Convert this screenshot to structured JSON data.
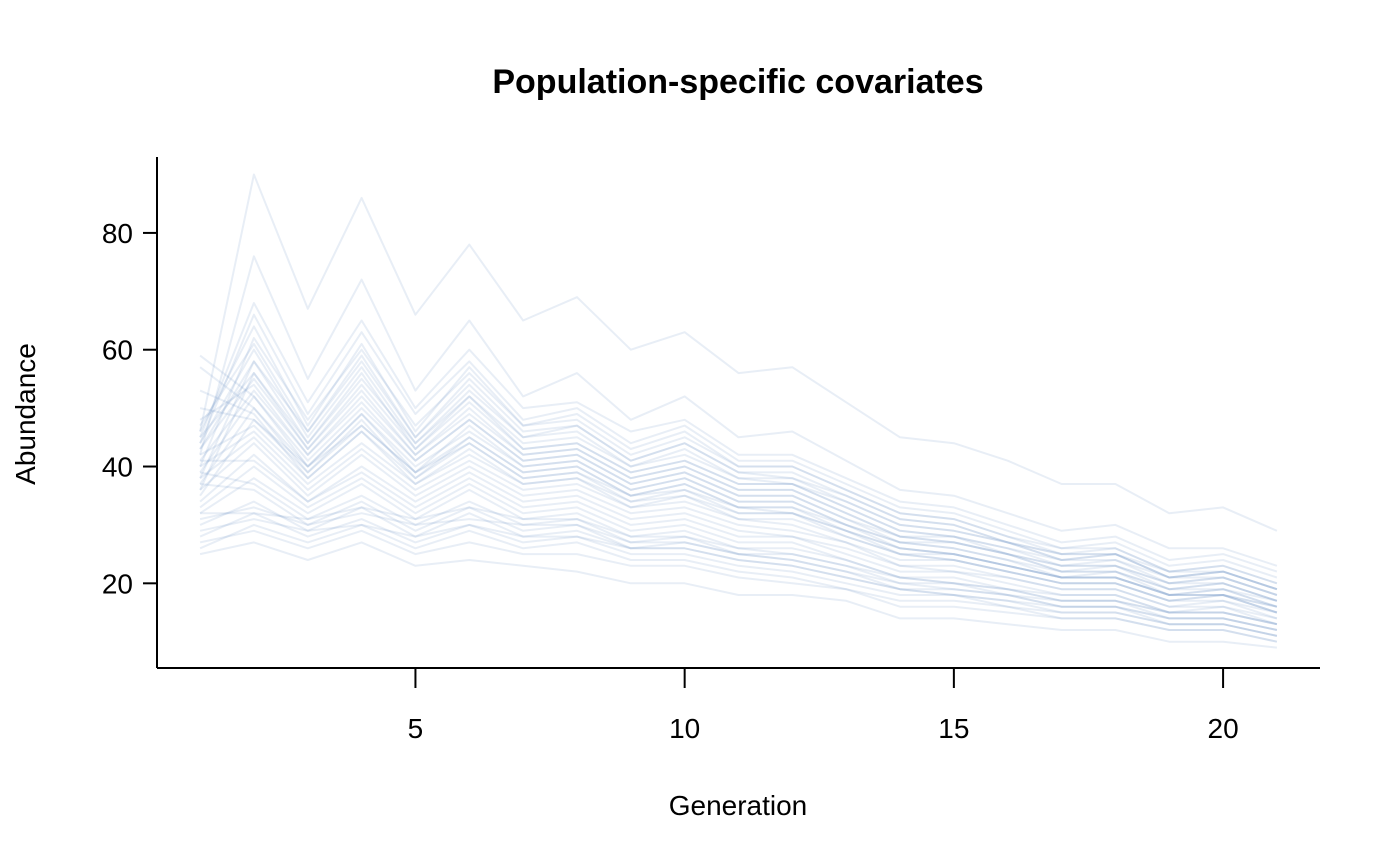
{
  "chart_data": {
    "type": "line",
    "title": "Population-specific covariates",
    "xlabel": "Generation",
    "ylabel": "Abundance",
    "xlim": [
      0.2,
      21.8
    ],
    "ylim": [
      5.5,
      93
    ],
    "x_ticks": [
      5,
      10,
      15,
      20
    ],
    "y_ticks": [
      20,
      40,
      60,
      80
    ],
    "grid": false,
    "legend": "none",
    "line_color": "#7093C9",
    "line_opacity": 0.16,
    "x": [
      1,
      2,
      3,
      4,
      5,
      6,
      7,
      8,
      9,
      10,
      11,
      12,
      13,
      14,
      15,
      16,
      17,
      18,
      19,
      20,
      21
    ],
    "series": [
      {
        "values": [
          46,
          90,
          67,
          86,
          66,
          78,
          65,
          69,
          60,
          63,
          56,
          57,
          51,
          45,
          44,
          41,
          37,
          37,
          32,
          33,
          29
        ]
      },
      {
        "values": [
          42,
          76,
          55,
          72,
          53,
          65,
          52,
          56,
          48,
          52,
          45,
          46,
          41,
          36,
          35,
          32,
          29,
          30,
          26,
          26,
          23
        ]
      },
      {
        "values": [
          45,
          68,
          51,
          65,
          50,
          60,
          50,
          51,
          46,
          48,
          42,
          42,
          38,
          34,
          33,
          30,
          27,
          28,
          24,
          25,
          22
        ]
      },
      {
        "values": [
          44,
          66,
          49,
          63,
          49,
          58,
          48,
          50,
          44,
          47,
          41,
          41,
          37,
          33,
          32,
          29,
          26,
          27,
          23,
          24,
          21
        ]
      },
      {
        "values": [
          40,
          62,
          48,
          60,
          47,
          56,
          47,
          48,
          42,
          45,
          40,
          40,
          36,
          32,
          31,
          28,
          26,
          26,
          22,
          23,
          20
        ]
      },
      {
        "values": [
          38,
          58,
          46,
          58,
          45,
          54,
          45,
          47,
          41,
          44,
          39,
          39,
          35,
          31,
          30,
          27,
          25,
          25,
          22,
          22,
          19
        ]
      },
      {
        "values": [
          36,
          56,
          44,
          55,
          44,
          52,
          44,
          45,
          40,
          42,
          38,
          38,
          34,
          30,
          29,
          27,
          24,
          25,
          21,
          22,
          19
        ]
      },
      {
        "values": [
          43,
          55,
          43,
          54,
          43,
          51,
          43,
          44,
          39,
          41,
          37,
          37,
          33,
          29,
          28,
          26,
          24,
          24,
          21,
          21,
          18
        ]
      },
      {
        "values": [
          41,
          53,
          42,
          52,
          42,
          49,
          42,
          43,
          38,
          40,
          36,
          36,
          32,
          28,
          28,
          25,
          23,
          23,
          20,
          21,
          18
        ]
      },
      {
        "values": [
          39,
          52,
          41,
          50,
          41,
          48,
          41,
          42,
          37,
          39,
          35,
          35,
          31,
          27,
          27,
          25,
          22,
          22,
          19,
          20,
          17
        ]
      },
      {
        "values": [
          37,
          50,
          40,
          49,
          40,
          46,
          40,
          41,
          36,
          38,
          34,
          34,
          30,
          27,
          26,
          24,
          22,
          22,
          19,
          19,
          17
        ]
      },
      {
        "values": [
          35,
          48,
          39,
          47,
          39,
          45,
          39,
          40,
          35,
          37,
          33,
          33,
          30,
          26,
          25,
          23,
          21,
          21,
          18,
          19,
          16
        ]
      },
      {
        "values": [
          42,
          47,
          38,
          46,
          38,
          44,
          38,
          39,
          34,
          36,
          32,
          32,
          29,
          25,
          25,
          23,
          21,
          21,
          18,
          18,
          16
        ]
      },
      {
        "values": [
          40,
          46,
          37,
          44,
          37,
          42,
          37,
          38,
          33,
          35,
          31,
          31,
          28,
          25,
          24,
          22,
          20,
          20,
          17,
          18,
          15
        ]
      },
      {
        "values": [
          38,
          45,
          36,
          43,
          36,
          41,
          36,
          37,
          33,
          34,
          31,
          30,
          27,
          24,
          24,
          22,
          20,
          20,
          17,
          17,
          15
        ]
      },
      {
        "values": [
          44,
          60,
          45,
          57,
          44,
          53,
          45,
          46,
          40,
          43,
          38,
          37,
          34,
          30,
          29,
          27,
          24,
          25,
          21,
          22,
          19
        ]
      },
      {
        "values": [
          46,
          64,
          47,
          61,
          46,
          57,
          47,
          49,
          43,
          46,
          40,
          40,
          36,
          32,
          31,
          28,
          25,
          26,
          22,
          23,
          20
        ]
      },
      {
        "values": [
          36,
          44,
          35,
          42,
          35,
          40,
          35,
          36,
          32,
          33,
          30,
          29,
          27,
          23,
          23,
          21,
          19,
          19,
          16,
          17,
          14
        ]
      },
      {
        "values": [
          34,
          42,
          34,
          40,
          34,
          39,
          34,
          35,
          31,
          32,
          29,
          28,
          26,
          23,
          22,
          21,
          19,
          19,
          16,
          16,
          14
        ]
      },
      {
        "values": [
          41,
          41,
          34,
          39,
          33,
          38,
          33,
          34,
          30,
          31,
          28,
          28,
          25,
          22,
          22,
          20,
          18,
          18,
          15,
          16,
          13
        ]
      },
      {
        "values": [
          33,
          40,
          33,
          38,
          32,
          37,
          32,
          33,
          29,
          30,
          27,
          27,
          24,
          21,
          21,
          19,
          18,
          18,
          15,
          15,
          13
        ]
      },
      {
        "values": [
          32,
          38,
          32,
          37,
          31,
          36,
          31,
          32,
          28,
          29,
          26,
          26,
          24,
          21,
          20,
          19,
          17,
          17,
          15,
          15,
          13
        ]
      },
      {
        "values": [
          39,
          37,
          31,
          35,
          30,
          34,
          30,
          31,
          27,
          28,
          25,
          25,
          23,
          20,
          20,
          18,
          17,
          17,
          14,
          14,
          12
        ]
      },
      {
        "values": [
          37,
          36,
          30,
          34,
          29,
          33,
          29,
          30,
          26,
          27,
          25,
          24,
          22,
          19,
          19,
          18,
          16,
          16,
          14,
          14,
          12
        ]
      },
      {
        "values": [
          30,
          34,
          29,
          33,
          28,
          32,
          28,
          29,
          26,
          26,
          24,
          23,
          21,
          19,
          18,
          17,
          16,
          16,
          13,
          13,
          11
        ]
      },
      {
        "values": [
          28,
          32,
          28,
          31,
          27,
          30,
          27,
          28,
          25,
          25,
          23,
          22,
          20,
          18,
          18,
          16,
          15,
          15,
          13,
          13,
          11
        ]
      },
      {
        "values": [
          26,
          30,
          27,
          30,
          26,
          29,
          26,
          27,
          24,
          24,
          22,
          21,
          19,
          17,
          17,
          16,
          14,
          14,
          12,
          12,
          10
        ]
      },
      {
        "values": [
          25,
          27,
          24,
          27,
          23,
          24,
          23,
          22,
          20,
          20,
          18,
          18,
          17,
          14,
          14,
          13,
          12,
          12,
          10,
          10,
          9
        ]
      },
      {
        "values": [
          59,
          52,
          40,
          49,
          39,
          47,
          40,
          41,
          36,
          38,
          34,
          34,
          30,
          27,
          26,
          24,
          21,
          22,
          18,
          19,
          16
        ]
      },
      {
        "values": [
          57,
          50,
          39,
          48,
          38,
          45,
          39,
          40,
          35,
          37,
          33,
          33,
          29,
          26,
          25,
          23,
          21,
          21,
          18,
          18,
          16
        ]
      },
      {
        "values": [
          53,
          49,
          38,
          46,
          37,
          43,
          37,
          38,
          34,
          35,
          32,
          32,
          28,
          25,
          24,
          22,
          20,
          20,
          17,
          18,
          15
        ]
      },
      {
        "values": [
          50,
          48,
          40,
          47,
          39,
          44,
          38,
          39,
          35,
          36,
          33,
          32,
          29,
          26,
          25,
          23,
          21,
          21,
          18,
          18,
          15
        ]
      },
      {
        "values": [
          48,
          54,
          42,
          51,
          41,
          48,
          41,
          42,
          37,
          39,
          35,
          35,
          31,
          28,
          27,
          25,
          22,
          23,
          19,
          20,
          17
        ]
      },
      {
        "values": [
          45,
          56,
          43,
          53,
          42,
          50,
          42,
          43,
          38,
          40,
          36,
          36,
          32,
          28,
          27,
          25,
          23,
          23,
          20,
          20,
          17
        ]
      },
      {
        "values": [
          43,
          58,
          44,
          56,
          43,
          52,
          43,
          44,
          39,
          41,
          37,
          37,
          33,
          29,
          28,
          26,
          23,
          24,
          20,
          21,
          18
        ]
      },
      {
        "values": [
          47,
          61,
          46,
          59,
          45,
          55,
          46,
          47,
          41,
          44,
          39,
          38,
          35,
          31,
          30,
          27,
          25,
          25,
          21,
          22,
          19
        ]
      },
      {
        "values": [
          31,
          33,
          30,
          32,
          30,
          31,
          30,
          30,
          27,
          27,
          25,
          24,
          22,
          20,
          19,
          18,
          16,
          16,
          14,
          14,
          12
        ]
      },
      {
        "values": [
          29,
          31,
          29,
          30,
          28,
          30,
          28,
          28,
          26,
          26,
          24,
          23,
          21,
          19,
          18,
          17,
          15,
          15,
          13,
          13,
          11
        ]
      },
      {
        "values": [
          27,
          29,
          26,
          29,
          25,
          27,
          25,
          25,
          23,
          23,
          21,
          20,
          19,
          16,
          16,
          15,
          14,
          14,
          12,
          12,
          10
        ]
      },
      {
        "values": [
          32,
          32,
          31,
          33,
          31,
          33,
          31,
          31,
          28,
          28,
          26,
          25,
          23,
          21,
          20,
          19,
          17,
          17,
          15,
          15,
          13
        ]
      }
    ]
  }
}
